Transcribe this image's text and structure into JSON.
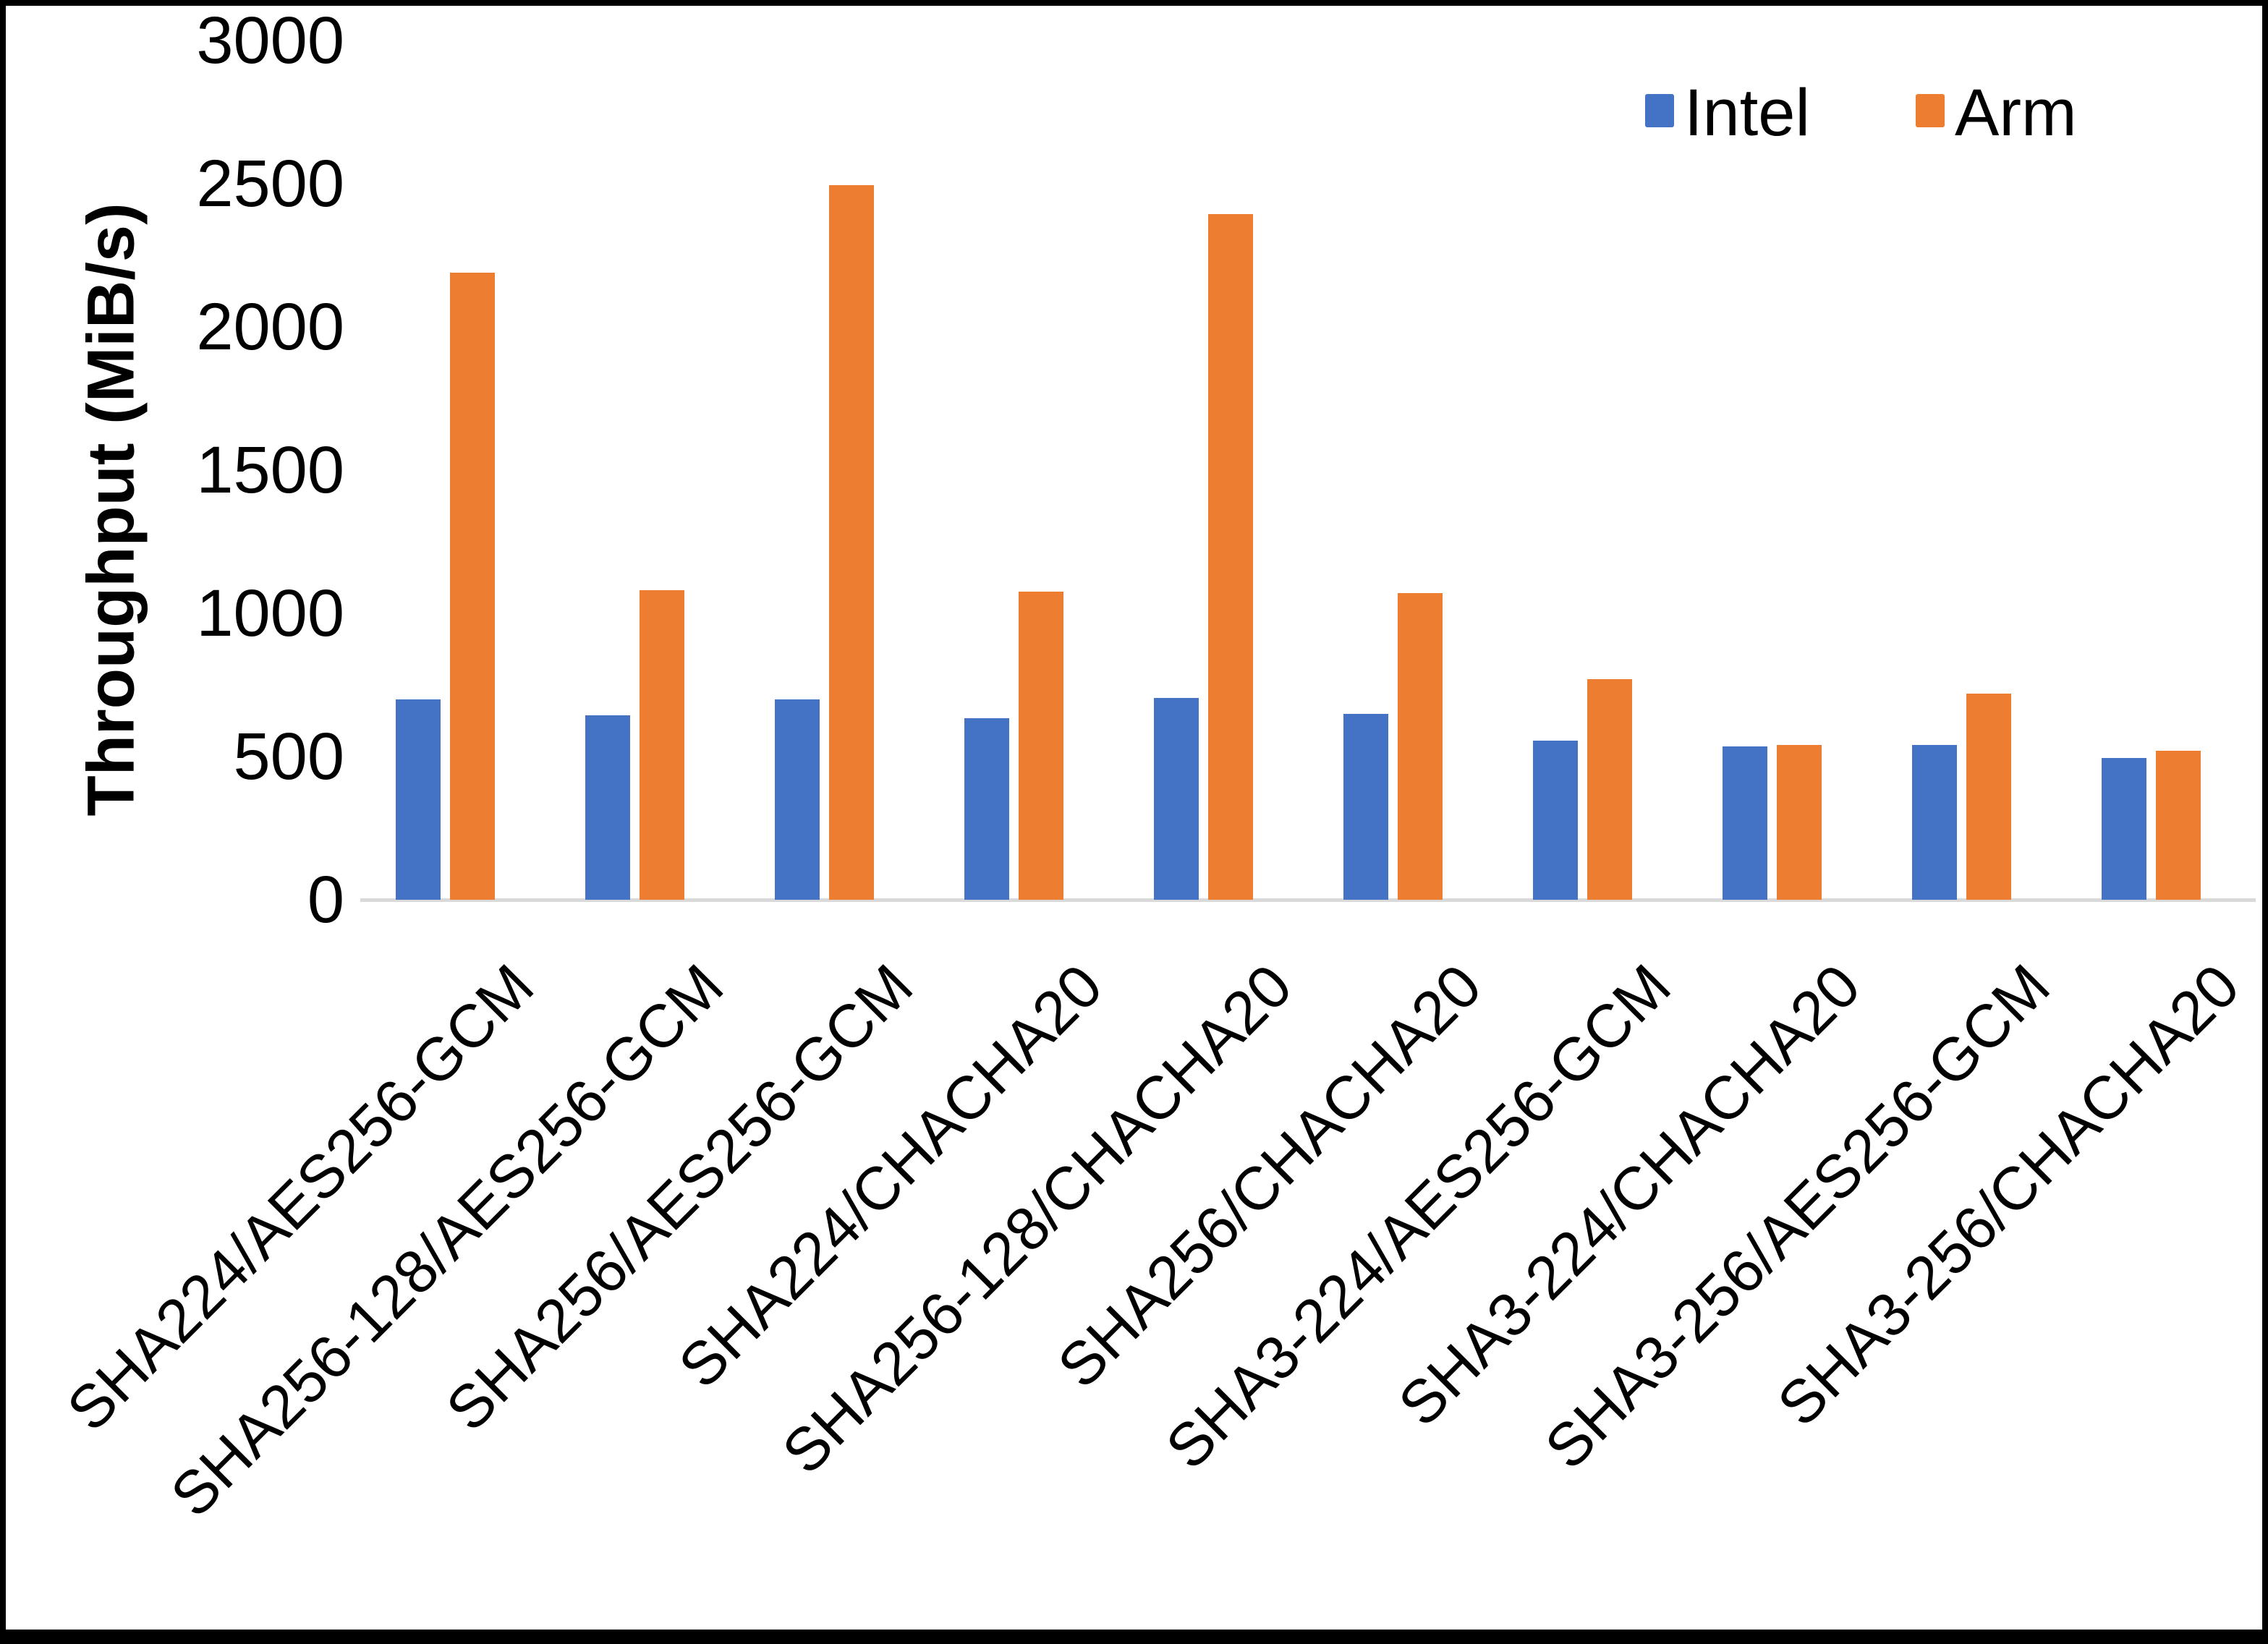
{
  "y_axis_title": "Throughput (MiB/s)",
  "legend": {
    "intel_label": "Intel",
    "arm_label": "Arm"
  },
  "colors": {
    "intel": "#4472C4",
    "arm": "#ED7D31",
    "axis_line": "#D9D9D9",
    "text": "#000000",
    "frame": "#000000"
  },
  "chart_data": {
    "type": "bar",
    "title": "",
    "xlabel": "",
    "ylabel": "Throughput (MiB/s)",
    "ylim": [
      0,
      3000
    ],
    "ytick_step": 500,
    "yticks": [
      0,
      500,
      1000,
      1500,
      2000,
      2500,
      3000
    ],
    "grid": false,
    "legend_position": "top-right",
    "categories": [
      "SHA224/AES256-GCM",
      "SHA256-128/AES256-GCM",
      "SHA256/AES256-GCM",
      "SHA224/CHACHA20",
      "SHA256-128/CHACHA20",
      "SHA256/CHACHA20",
      "SHA3-224/AES256-GCM",
      "SHA3-224/CHACHA20",
      "SHA3-256/AES256-GCM",
      "SHA3-256/CHACHA20"
    ],
    "series": [
      {
        "name": "Intel",
        "color": "#4472C4",
        "values": [
          700,
          645,
          700,
          635,
          705,
          650,
          555,
          535,
          540,
          495
        ]
      },
      {
        "name": "Arm",
        "color": "#ED7D31",
        "values": [
          2190,
          1080,
          2495,
          1075,
          2395,
          1070,
          770,
          540,
          720,
          520
        ]
      }
    ]
  }
}
